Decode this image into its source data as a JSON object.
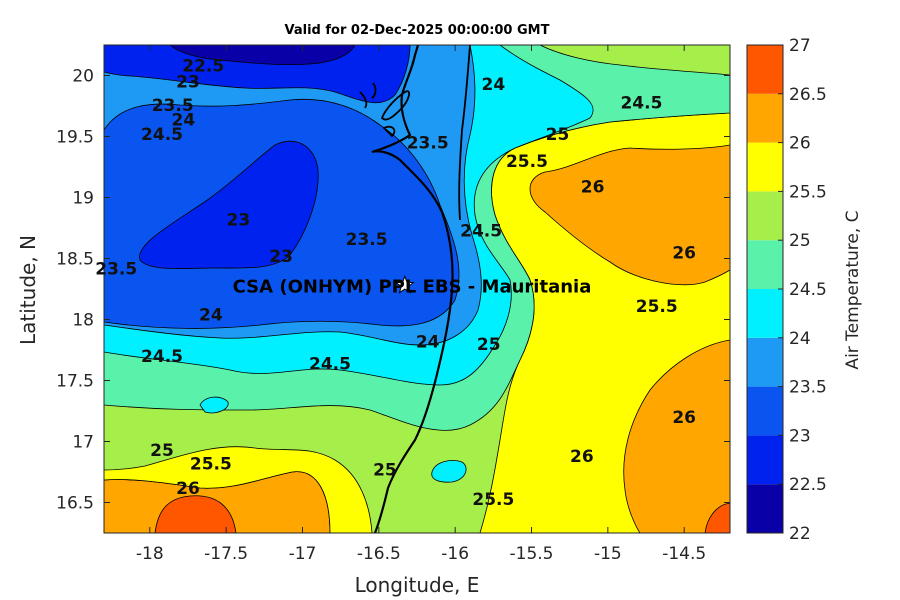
{
  "chart_data": {
    "type": "contour",
    "title": "Valid for 02-Dec-2025 00:00:00 GMT",
    "xlabel": "Longitude, E",
    "ylabel": "Latitude, N",
    "colorbar_label": "Air Temperature, C",
    "x_ticks": [
      "-18",
      "-17.5",
      "-17",
      "-16.5",
      "-16",
      "-15.5",
      "-15",
      "-14.5"
    ],
    "y_ticks": [
      "16.5",
      "17",
      "17.5",
      "18",
      "18.5",
      "19",
      "19.5",
      "20"
    ],
    "xlim": [
      -18.3,
      -14.2
    ],
    "ylim": [
      16.25,
      20.25
    ],
    "levels": [
      22,
      22.5,
      23,
      23.5,
      24,
      24.5,
      25,
      25.5,
      26,
      26.5,
      27
    ],
    "colorbar_ticks": [
      "22",
      "22.5",
      "23",
      "23.5",
      "24",
      "24.5",
      "25",
      "25.5",
      "26",
      "26.5",
      "27"
    ],
    "level_colors": [
      "#0a00a8",
      "#0022ee",
      "#0a55f0",
      "#1e9af5",
      "#00f0ff",
      "#5af2aa",
      "#a6ee4a",
      "#ffff00",
      "#ffa700",
      "#ff5600",
      "#ff0000"
    ],
    "station": {
      "label": "CSA (ONHYM) PPL EBS  - Mauritania",
      "lon": -16.33,
      "lat": 18.28,
      "marker": "white star"
    },
    "contour_labels": [
      {
        "text": "22.5",
        "lon": -17.65,
        "lat": 20.08
      },
      {
        "text": "23",
        "lon": -17.75,
        "lat": 19.95
      },
      {
        "text": "23.5",
        "lon": -17.85,
        "lat": 19.76
      },
      {
        "text": "24",
        "lon": -17.78,
        "lat": 19.64
      },
      {
        "text": "24.5",
        "lon": -17.92,
        "lat": 19.52
      },
      {
        "text": "23.5",
        "lon": -16.18,
        "lat": 19.45
      },
      {
        "text": "24",
        "lon": -15.75,
        "lat": 19.93
      },
      {
        "text": "24.5",
        "lon": -14.78,
        "lat": 19.78
      },
      {
        "text": "25",
        "lon": -15.33,
        "lat": 19.52
      },
      {
        "text": "25.5",
        "lon": -15.53,
        "lat": 19.3
      },
      {
        "text": "26",
        "lon": -15.1,
        "lat": 19.09
      },
      {
        "text": "23",
        "lon": -17.42,
        "lat": 18.82
      },
      {
        "text": "23",
        "lon": -17.14,
        "lat": 18.52
      },
      {
        "text": "23.5",
        "lon": -16.58,
        "lat": 18.66
      },
      {
        "text": "23.5",
        "lon": -18.22,
        "lat": 18.42
      },
      {
        "text": "24.5",
        "lon": -15.83,
        "lat": 18.73
      },
      {
        "text": "26",
        "lon": -14.5,
        "lat": 18.55
      },
      {
        "text": "24",
        "lon": -17.6,
        "lat": 18.04
      },
      {
        "text": "25.5",
        "lon": -14.68,
        "lat": 18.11
      },
      {
        "text": "24.5",
        "lon": -17.92,
        "lat": 17.7
      },
      {
        "text": "24.5",
        "lon": -16.82,
        "lat": 17.64
      },
      {
        "text": "24",
        "lon": -16.18,
        "lat": 17.82
      },
      {
        "text": "25",
        "lon": -15.78,
        "lat": 17.8
      },
      {
        "text": "25",
        "lon": -17.92,
        "lat": 16.93
      },
      {
        "text": "25.5",
        "lon": -17.6,
        "lat": 16.82
      },
      {
        "text": "26",
        "lon": -17.75,
        "lat": 16.62
      },
      {
        "text": "25",
        "lon": -16.46,
        "lat": 16.77
      },
      {
        "text": "26",
        "lon": -15.17,
        "lat": 16.88
      },
      {
        "text": "25.5",
        "lon": -15.75,
        "lat": 16.53
      },
      {
        "text": "26",
        "lon": -14.5,
        "lat": 17.2
      }
    ]
  }
}
